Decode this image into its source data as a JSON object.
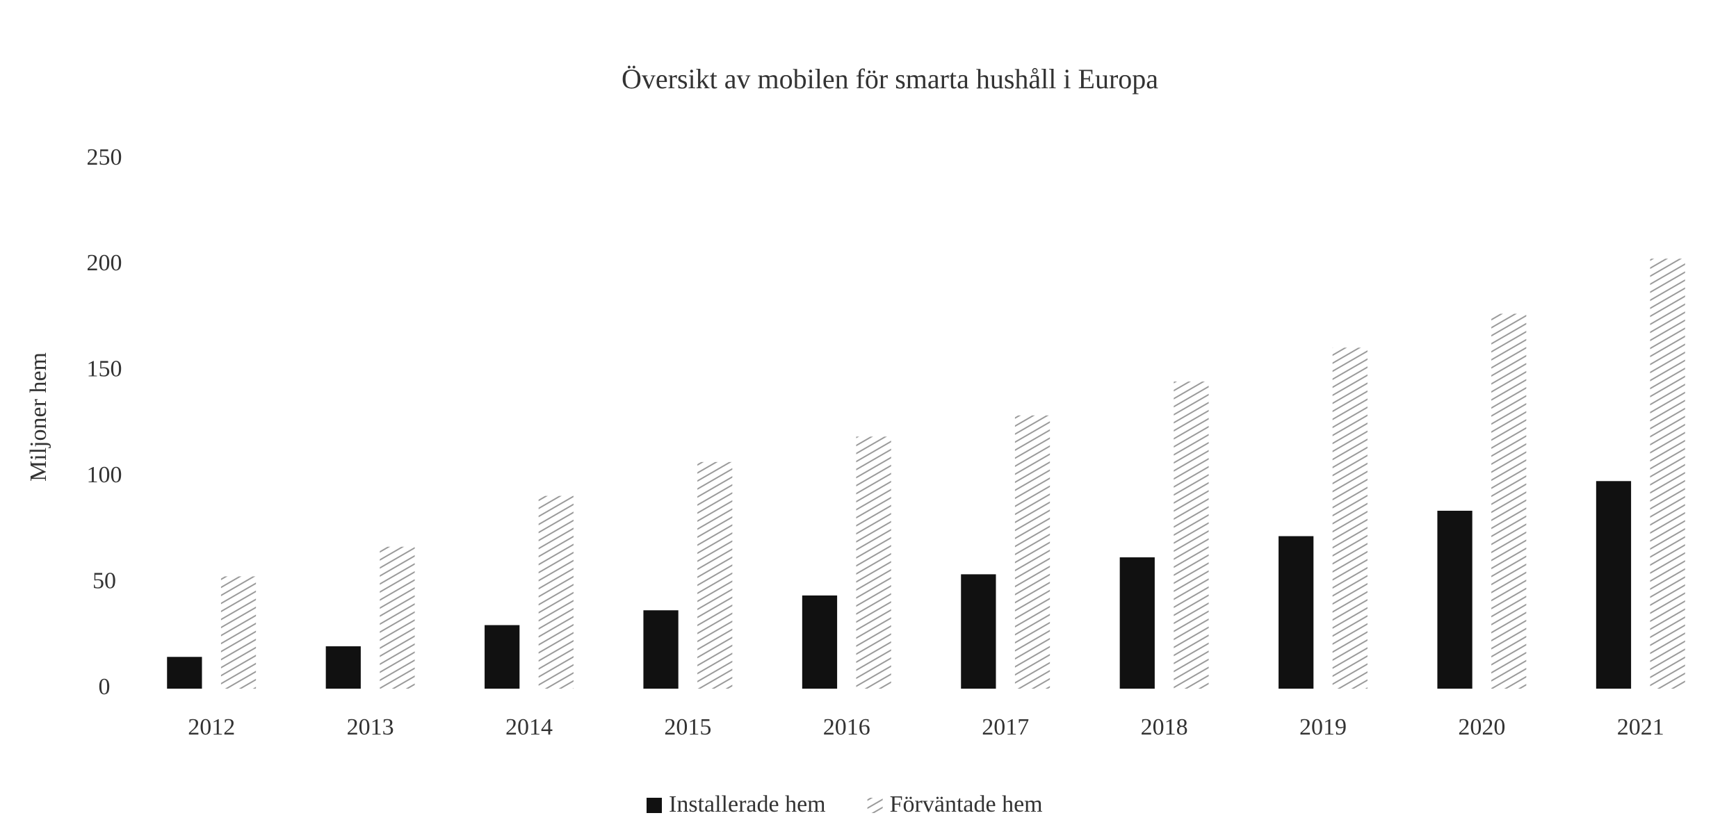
{
  "chart_data": {
    "type": "bar",
    "title": "Översikt av mobilen för smarta hushåll i Europa",
    "y_label": "Miljoner hem",
    "categories": [
      "2012",
      "2013",
      "2014",
      "2015",
      "2016",
      "2017",
      "2018",
      "2019",
      "2020",
      "2021"
    ],
    "series": [
      {
        "name": "Installerade hem",
        "color": "#111111",
        "pattern": "solid",
        "values": [
          15,
          20,
          30,
          37,
          44,
          54,
          62,
          72,
          84,
          98
        ]
      },
      {
        "name": "Förväntade hem",
        "color": "#9a9a9a",
        "pattern": "hatch",
        "values": [
          53,
          67,
          91,
          107,
          119,
          129,
          145,
          161,
          177,
          203
        ]
      }
    ],
    "ylim": [
      0,
      250
    ],
    "yticks": [
      0,
      50,
      100,
      150,
      200,
      250
    ],
    "grid": false,
    "legend": "bottom"
  }
}
